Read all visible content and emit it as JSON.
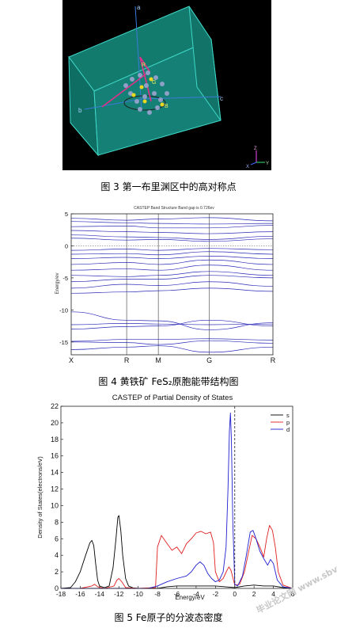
{
  "figure3": {
    "caption": "图 3 第一布里渊区中的高对称点",
    "axis_labels": {
      "top": "a",
      "right": "c",
      "left": "b"
    },
    "point_labels": [
      "G",
      "R",
      "B"
    ],
    "corner_axes": {
      "x": "X",
      "y": "Y",
      "z": "Z"
    }
  },
  "figure4": {
    "caption": "图 4 黄铁矿 FeS₂原胞能带结构图",
    "chart_data": {
      "type": "line",
      "title": "CASTEP Band Structure Band gap is 0.726ev",
      "ylabel": "Energy/ev",
      "xlabel": "",
      "ylim": [
        -17,
        5
      ],
      "yticks": [
        5,
        0,
        -5,
        -10,
        -15
      ],
      "kpoints": [
        "X",
        "R",
        "M",
        "G",
        "R"
      ],
      "kpoint_positions": [
        0,
        0.275,
        0.432,
        0.685,
        1.0
      ],
      "fermi_level": 0,
      "band_energies_at_kpoints": [
        [
          -16.2,
          -15.8,
          -15.6,
          -16.6,
          -15.8
        ],
        [
          -15.0,
          -15.1,
          -15.4,
          -14.8,
          -15.2
        ],
        [
          -14.9,
          -14.6,
          -14.6,
          -14.5,
          -14.7
        ],
        [
          -13.0,
          -12.6,
          -12.5,
          -11.6,
          -12.5
        ],
        [
          -12.3,
          -12.1,
          -12.2,
          -12.3,
          -12.2
        ],
        [
          -10.3,
          -11.6,
          -11.7,
          -13.1,
          -12.0
        ],
        [
          -7.4,
          -7.2,
          -7.0,
          -6.6,
          -7.1
        ],
        [
          -6.6,
          -6.0,
          -6.2,
          -5.6,
          -6.3
        ],
        [
          -5.6,
          -5.2,
          -5.2,
          -4.6,
          -5.0
        ],
        [
          -4.6,
          -4.8,
          -4.6,
          -4.0,
          -4.6
        ],
        [
          -3.8,
          -3.6,
          -3.8,
          -3.0,
          -3.8
        ],
        [
          -2.9,
          -2.6,
          -2.9,
          -2.2,
          -2.9
        ],
        [
          -2.0,
          -1.8,
          -2.0,
          -1.6,
          -2.0
        ],
        [
          -1.3,
          -1.2,
          -1.4,
          -0.9,
          -1.3
        ],
        [
          -0.7,
          -0.5,
          -0.7,
          -0.4,
          -0.6
        ],
        [
          1.2,
          0.9,
          1.0,
          0.7,
          1.1
        ],
        [
          1.7,
          1.4,
          1.3,
          1.0,
          1.5
        ],
        [
          2.4,
          2.2,
          2.1,
          1.9,
          2.2
        ],
        [
          3.0,
          3.1,
          2.8,
          2.8,
          3.2
        ],
        [
          3.8,
          3.6,
          3.5,
          3.4,
          3.5
        ],
        [
          4.3,
          4.0,
          4.2,
          4.4,
          3.9
        ]
      ]
    }
  },
  "figure5": {
    "caption": "图 5 Fe原子的分波态密度",
    "chart_data": {
      "type": "line",
      "title": "CASTEP of Partial Density of States",
      "xlabel": "Energy/eV",
      "ylabel": "Density of States(electrons/eV)",
      "xlim": [
        -18,
        6
      ],
      "ylim": [
        0,
        22
      ],
      "xticks": [
        -18,
        -16,
        -14,
        -12,
        -10,
        -8,
        -6,
        -4,
        -2,
        0,
        2,
        4,
        6
      ],
      "yticks": [
        0,
        2,
        4,
        6,
        8,
        10,
        12,
        14,
        16,
        18,
        20,
        22
      ],
      "fermi_level": 0,
      "legend_placement": "top-right",
      "series": [
        {
          "name": "s",
          "color": "#000000",
          "x": [
            -18,
            -17,
            -16.5,
            -16,
            -15.5,
            -15,
            -14.8,
            -14.6,
            -14.4,
            -14.2,
            -14,
            -13.5,
            -13,
            -12.6,
            -12.3,
            -12.1,
            -12,
            -11.8,
            -11.6,
            -11.3,
            -11,
            -10.5,
            -10,
            -9,
            -8,
            -7,
            -6,
            -4,
            -2,
            -1,
            0,
            1,
            2,
            3,
            4,
            5,
            6
          ],
          "y": [
            0,
            0.1,
            0.8,
            2.0,
            3.8,
            5.5,
            5.8,
            5.2,
            3.0,
            1.0,
            0.3,
            0.1,
            0.3,
            2.5,
            6.0,
            8.6,
            8.8,
            7.0,
            4.0,
            1.2,
            0.3,
            0.05,
            0,
            0,
            0,
            0.2,
            0.3,
            0.3,
            0.3,
            0.2,
            0.1,
            0.3,
            0.4,
            0.3,
            0.3,
            0.1,
            0
          ]
        },
        {
          "name": "p",
          "color": "#e02020",
          "x": [
            -18,
            -16,
            -14.8,
            -14.5,
            -14.2,
            -13.5,
            -12.5,
            -12.2,
            -12,
            -11.7,
            -11.3,
            -10,
            -8.2,
            -8,
            -7.6,
            -7,
            -6.5,
            -6,
            -5.5,
            -5,
            -4.5,
            -4,
            -3.5,
            -3,
            -2.5,
            -2.2,
            -2,
            -1.6,
            -1.2,
            -0.8,
            -0.6,
            -0.4,
            0,
            0.5,
            1,
            1.5,
            1.8,
            2.2,
            2.6,
            3,
            3.3,
            3.6,
            3.9,
            4.2,
            4.5,
            5,
            6
          ],
          "y": [
            0,
            0,
            0.3,
            0.5,
            0.2,
            0,
            0.3,
            1.0,
            1.2,
            0.8,
            0.1,
            0,
            0.1,
            5.0,
            6.4,
            5.4,
            4.6,
            5.0,
            4.2,
            5.4,
            6.0,
            6.7,
            6.9,
            6.6,
            6.8,
            5.5,
            2.0,
            0.8,
            1.2,
            2.2,
            2.6,
            2.2,
            0.4,
            0.5,
            2.0,
            4.8,
            6.4,
            6.0,
            5.0,
            3.8,
            6.0,
            7.6,
            7.0,
            5.0,
            2.0,
            0.4,
            0
          ]
        },
        {
          "name": "d",
          "color": "#2020d0",
          "x": [
            -18,
            -9,
            -8,
            -7,
            -6,
            -5,
            -4.5,
            -4,
            -3.6,
            -3.2,
            -2.8,
            -2.4,
            -2,
            -1.6,
            -1.2,
            -0.9,
            -0.7,
            -0.55,
            -0.45,
            -0.35,
            -0.2,
            0,
            0.3,
            0.8,
            1.2,
            1.6,
            1.9,
            2.2,
            2.6,
            3.0,
            3.4,
            3.7,
            4.0,
            4.4,
            5,
            6
          ],
          "y": [
            0,
            0,
            0.3,
            0.8,
            1.2,
            1.5,
            2.0,
            2.8,
            3.2,
            2.8,
            1.8,
            1.2,
            0.8,
            1.0,
            2.0,
            5.0,
            12.0,
            19.0,
            21.2,
            18.0,
            8.0,
            0.5,
            0.3,
            1.5,
            4.0,
            6.8,
            7.0,
            6.0,
            4.5,
            3.6,
            2.8,
            3.5,
            3.0,
            1.0,
            0.2,
            0
          ]
        }
      ]
    }
  },
  "watermark": "毕业论文网 www.sbvv.com"
}
